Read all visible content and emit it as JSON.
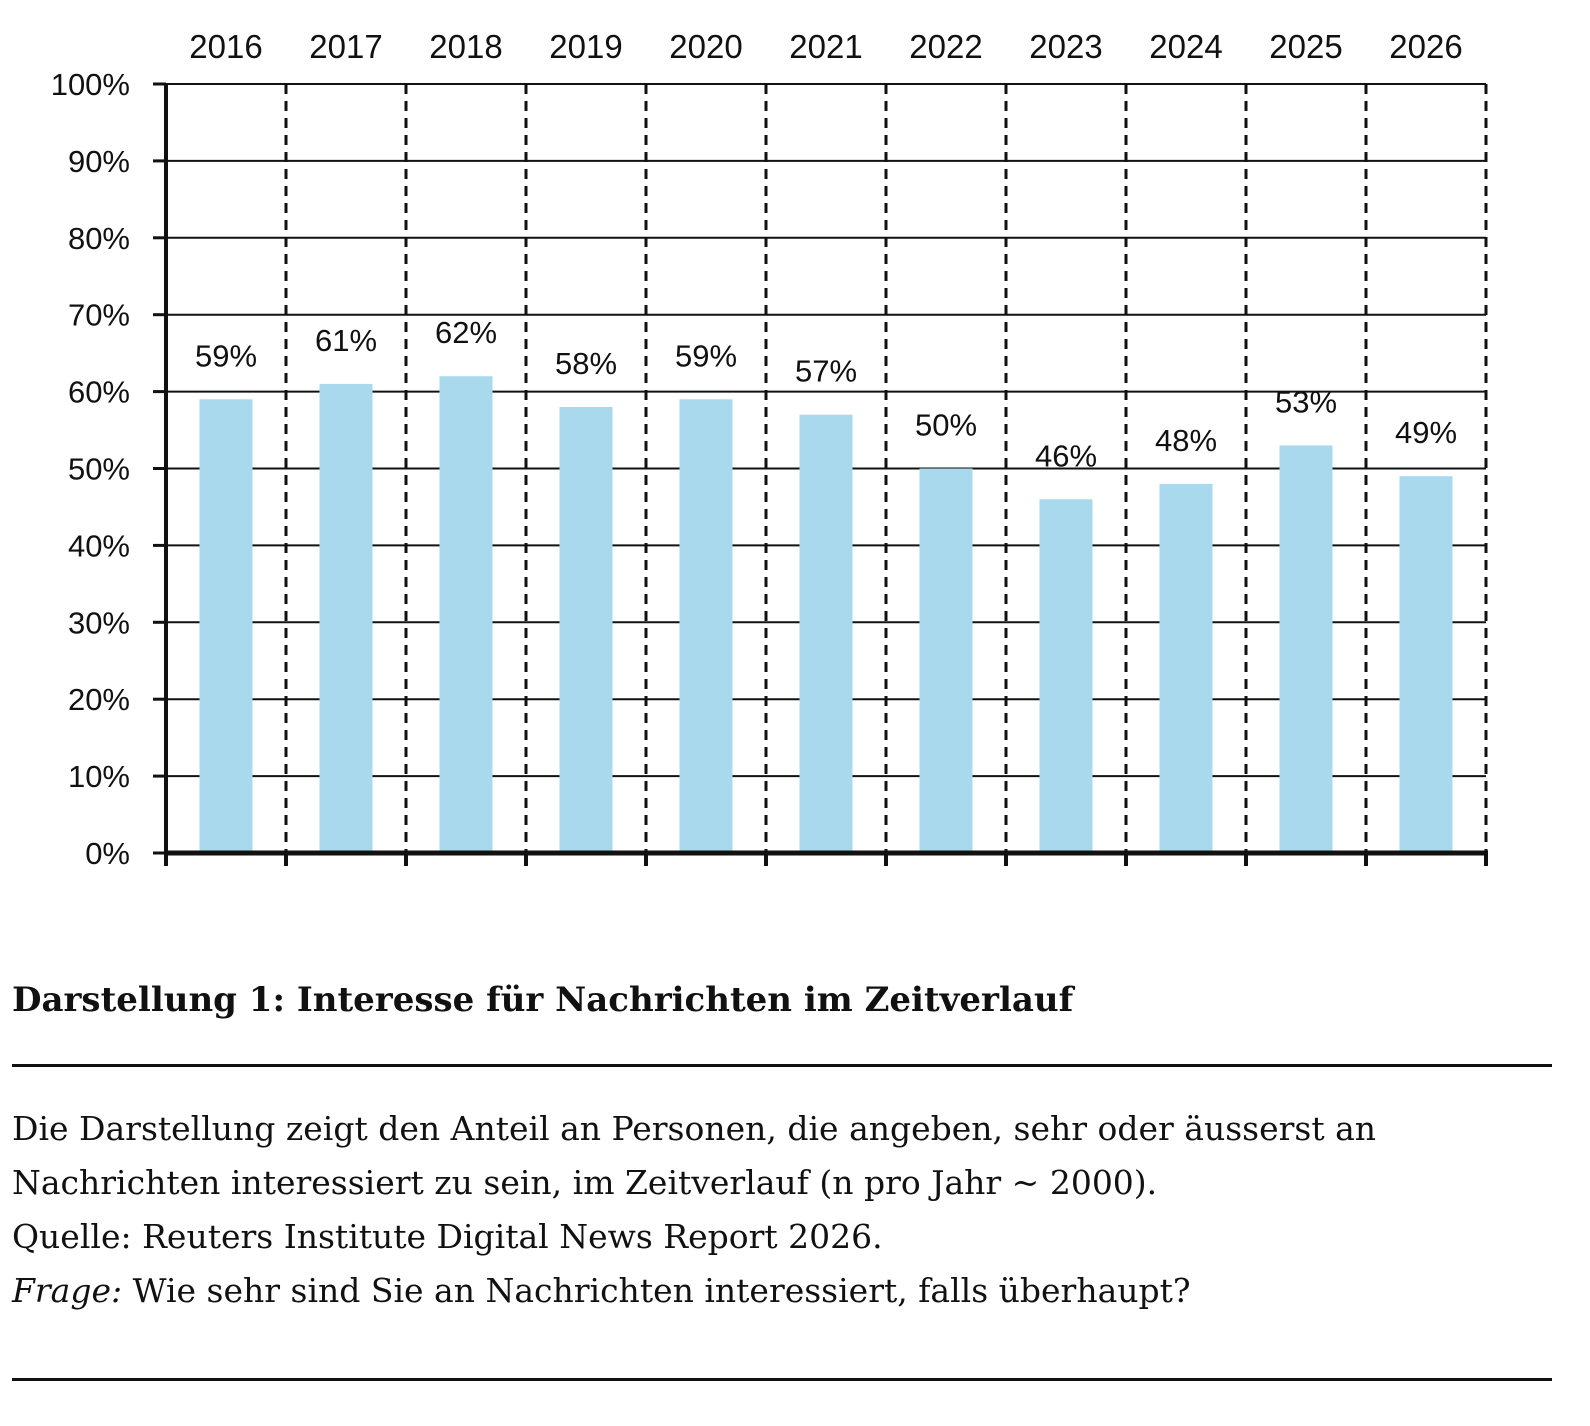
{
  "chart_data": {
    "type": "bar",
    "categories": [
      "2016",
      "2017",
      "2018",
      "2019",
      "2020",
      "2021",
      "2022",
      "2023",
      "2024",
      "2025",
      "2026"
    ],
    "values": [
      59,
      61,
      62,
      58,
      59,
      57,
      50,
      46,
      48,
      53,
      49
    ],
    "value_labels": [
      "59%",
      "61%",
      "62%",
      "58%",
      "59%",
      "57%",
      "50%",
      "46%",
      "48%",
      "53%",
      "49%"
    ],
    "y_ticks": [
      "0%",
      "10%",
      "20%",
      "30%",
      "40%",
      "50%",
      "60%",
      "70%",
      "80%",
      "90%",
      "100%"
    ],
    "ylim": [
      0,
      100
    ],
    "category_axis_position": "top",
    "grid": "horizontal solid, vertical dashed",
    "bar_color": "#a8d9ec"
  },
  "caption": {
    "title": "Darstellung 1: Interesse für Nachrichten im Zeitverlauf",
    "line1": "Die Darstellung zeigt den Anteil an Personen, die angeben, sehr oder äusserst an",
    "line2": "Nachrichten interessiert zu sein, im Zeitverlauf (n pro Jahr ~ 2000).",
    "source": "Quelle: Reuters Institute Digital News Report 2026.",
    "question_label": "Frage:",
    "question": " Wie sehr sind Sie an Nachrichten interessiert, falls überhaupt?"
  }
}
